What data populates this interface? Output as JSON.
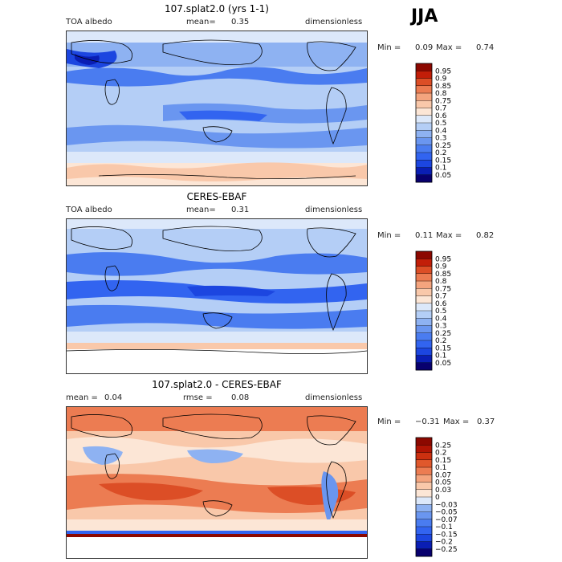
{
  "season": "JJA",
  "panels": [
    {
      "title": "107.splat2.0 (yrs 1-1)",
      "left_label": "TOA albedo",
      "mean_label": "mean=",
      "mean_value": "0.35",
      "units": "dimensionless",
      "min_label": "Min =",
      "min_value": "0.09",
      "max_label": "Max =",
      "max_value": "0.74"
    },
    {
      "title": "CERES-EBAF",
      "left_label": "TOA albedo",
      "mean_label": "mean=",
      "mean_value": "0.31",
      "units": "dimensionless",
      "min_label": "Min =",
      "min_value": "0.11",
      "max_label": "Max =",
      "max_value": "0.82"
    },
    {
      "title": "107.splat2.0 - CERES-EBAF",
      "mean_label": "mean =",
      "mean_value": "0.04",
      "rmse_label": "rmse =",
      "rmse_value": "0.08",
      "units": "dimensionless",
      "min_label": "Min =",
      "min_value": "−0.31",
      "max_label": "Max =",
      "max_value": "0.37"
    }
  ],
  "chart_data": [
    {
      "type": "heatmap",
      "title": "107.splat2.0 (yrs 1-1)",
      "colorbar": {
        "levels": [
          "0.05",
          "0.1",
          "0.15",
          "0.2",
          "0.25",
          "0.3",
          "0.4",
          "0.5",
          "0.6",
          "0.7",
          "0.75",
          "0.8",
          "0.85",
          "0.9",
          "0.95"
        ],
        "colors": [
          "#08006e",
          "#0a1eb4",
          "#1c46e0",
          "#3264f0",
          "#4a7cf0",
          "#6a96f0",
          "#8eb2f2",
          "#b4cef6",
          "#dce8fa",
          "#fce6d6",
          "#f9c8aa",
          "#f4a47e",
          "#ec7c52",
          "#dc4e26",
          "#c21e08",
          "#8c0800"
        ]
      }
    },
    {
      "type": "heatmap",
      "title": "CERES-EBAF",
      "colorbar": {
        "levels": [
          "0.05",
          "0.1",
          "0.15",
          "0.2",
          "0.25",
          "0.3",
          "0.4",
          "0.5",
          "0.6",
          "0.7",
          "0.75",
          "0.8",
          "0.85",
          "0.9",
          "0.95"
        ],
        "colors": [
          "#08006e",
          "#0a1eb4",
          "#1c46e0",
          "#3264f0",
          "#4a7cf0",
          "#6a96f0",
          "#8eb2f2",
          "#b4cef6",
          "#dce8fa",
          "#fce6d6",
          "#f9c8aa",
          "#f4a47e",
          "#ec7c52",
          "#dc4e26",
          "#c21e08",
          "#8c0800"
        ]
      }
    },
    {
      "type": "heatmap",
      "title": "107.splat2.0 - CERES-EBAF",
      "colorbar": {
        "levels": [
          "−0.25",
          "−0.2",
          "−0.15",
          "−0.1",
          "−0.07",
          "−0.05",
          "−0.03",
          "0",
          "0.03",
          "0.05",
          "0.07",
          "0.1",
          "0.15",
          "0.2",
          "0.25"
        ],
        "colors": [
          "#08006e",
          "#0a1eb4",
          "#1c46e0",
          "#3264f0",
          "#4a7cf0",
          "#6a96f0",
          "#8eb2f2",
          "#dce8fa",
          "#fce6d6",
          "#f9c8aa",
          "#f4a47e",
          "#ec7c52",
          "#e0582c",
          "#cc3010",
          "#b01404",
          "#8c0800"
        ]
      }
    }
  ]
}
